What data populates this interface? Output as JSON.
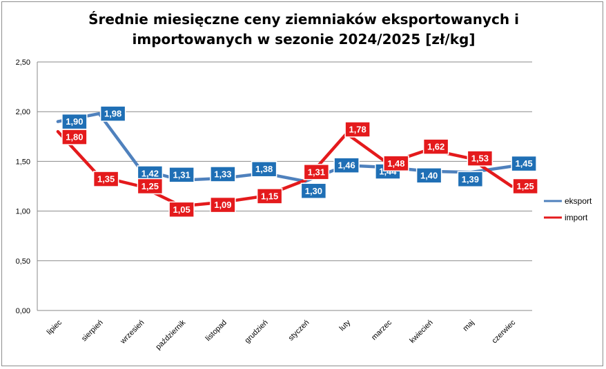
{
  "chart_data": {
    "type": "line",
    "title": "Średnie miesięczne ceny ziemniaków eksportowanych i importowanych w sezonie 2024/2025  [zł/kg]",
    "title_lines": [
      "Średnie miesięczne ceny ziemniaków eksportowanych i",
      "importowanych w sezonie 2024/2025  [zł/kg]"
    ],
    "categories": [
      "lipiec",
      "sierpień",
      "wrzesień",
      "październik",
      "listopad",
      "grudzień",
      "styczeń",
      "luty",
      "marzec",
      "kwiecień",
      "maj",
      "czerwiec"
    ],
    "ylim": [
      0,
      2.5
    ],
    "yticks": [
      0,
      0.5,
      1.0,
      1.5,
      2.0,
      2.5
    ],
    "ytick_labels": [
      "0,00",
      "0,50",
      "1,00",
      "1,50",
      "2,00",
      "2,50"
    ],
    "grid": true,
    "legend_position": "right",
    "series": [
      {
        "name": "eksport",
        "color": "#4f81bd",
        "label_color": "#1f6fb5",
        "values": [
          1.9,
          1.98,
          1.42,
          1.31,
          1.33,
          1.38,
          1.3,
          1.46,
          1.44,
          1.4,
          1.39,
          1.45
        ],
        "labels": [
          "1,90",
          "1,98",
          "1,42",
          "1,31",
          "1,33",
          "1,38",
          "1,30",
          "1,46",
          "1,44",
          "1,40",
          "1,39",
          "1,45"
        ]
      },
      {
        "name": "import",
        "color": "#e41a1c",
        "label_color": "#e41a1c",
        "values": [
          1.8,
          1.35,
          1.25,
          1.05,
          1.09,
          1.15,
          1.31,
          1.78,
          1.48,
          1.62,
          1.53,
          1.25
        ],
        "labels": [
          "1,80",
          "1,35",
          "1,25",
          "1,05",
          "1,09",
          "1,15",
          "1,31",
          "1,78",
          "1,48",
          "1,62",
          "1,53",
          "1,25"
        ]
      }
    ]
  }
}
